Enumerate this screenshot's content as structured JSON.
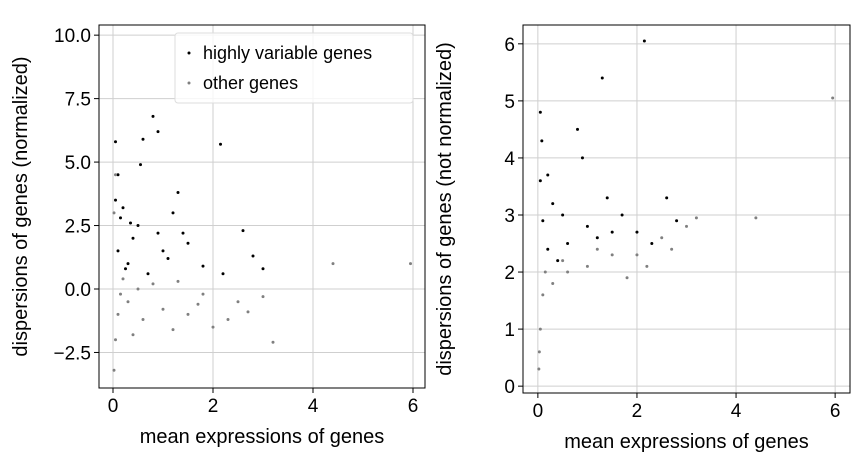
{
  "chart_data": [
    {
      "type": "scatter",
      "xlabel": "mean expressions of genes",
      "ylabel": "dispersions of genes (normalized)",
      "xlim": [
        -0.28,
        6.24
      ],
      "ylim": [
        -3.9,
        10.4
      ],
      "xticks": [
        0,
        2,
        4,
        6
      ],
      "yticks": [
        {
          "value": -2.5,
          "label": "−2.5"
        },
        {
          "value": 0,
          "label": "0.0"
        },
        2.5,
        {
          "value": 5,
          "label": "5.0"
        },
        7.5,
        {
          "value": 10,
          "label": "10.0"
        }
      ],
      "grid": true,
      "legend": "upper right",
      "series": [
        {
          "name": "highly variable genes",
          "color": "#000000",
          "x": [
            0.05,
            0.1,
            0.2,
            0.5,
            0.6,
            0.8,
            0.9,
            1.2,
            1.4,
            2.15,
            2.6,
            1.0,
            0.3,
            0.7,
            1.8,
            2.2,
            3.0,
            1.5,
            0.15,
            0.4,
            0.9,
            1.1,
            2.8,
            1.3,
            0.55,
            0.1,
            0.25,
            0.35,
            0.05
          ],
          "y": [
            5.8,
            4.5,
            3.2,
            2.5,
            5.9,
            6.8,
            6.2,
            3.0,
            2.2,
            5.7,
            2.3,
            1.5,
            1.0,
            0.6,
            0.9,
            0.6,
            0.8,
            1.8,
            2.8,
            2.0,
            2.2,
            1.2,
            1.3,
            3.8,
            4.9,
            1.5,
            0.8,
            2.6,
            3.5
          ]
        },
        {
          "name": "other genes",
          "color": "#808080",
          "x": [
            0.02,
            0.05,
            0.1,
            0.3,
            0.6,
            1.0,
            1.5,
            2.0,
            2.5,
            3.0,
            3.2,
            4.4,
            5.95,
            0.2,
            0.8,
            1.3,
            1.8,
            2.3,
            2.7,
            0.05,
            0.02,
            0.4,
            1.2,
            0.15,
            0.5,
            1.7
          ],
          "y": [
            -3.2,
            -2.0,
            -1.0,
            -0.5,
            -1.2,
            -0.8,
            -1.0,
            -1.5,
            -0.5,
            -0.3,
            -2.1,
            1.0,
            1.0,
            0.4,
            0.2,
            0.3,
            -0.2,
            -1.2,
            -0.9,
            4.5,
            3.0,
            -1.8,
            -1.6,
            -0.2,
            0.0,
            -0.6
          ]
        }
      ]
    },
    {
      "type": "scatter",
      "xlabel": "mean expressions of genes",
      "ylabel": "dispersions of genes (not normalized)",
      "xlim": [
        -0.3,
        6.3
      ],
      "ylim": [
        -0.12,
        6.33
      ],
      "xticks": [
        0,
        2,
        4,
        6
      ],
      "yticks": [
        0,
        1,
        2,
        3,
        4,
        5,
        6
      ],
      "grid": true,
      "series": [
        {
          "color": "#000000",
          "x": [
            0.05,
            0.08,
            0.2,
            0.3,
            0.5,
            0.8,
            0.9,
            1.3,
            2.15,
            1.4,
            2.6,
            1.0,
            1.5,
            2.0,
            2.8,
            0.2,
            0.6,
            1.2,
            1.7,
            0.4,
            2.3,
            0.1,
            0.05
          ],
          "y": [
            4.8,
            4.3,
            3.7,
            3.2,
            3.0,
            4.5,
            4.0,
            5.4,
            6.05,
            3.3,
            3.3,
            2.8,
            2.7,
            2.7,
            2.9,
            2.4,
            2.5,
            2.6,
            3.0,
            2.2,
            2.5,
            2.9,
            3.6
          ]
        },
        {
          "color": "#808080",
          "x": [
            0.02,
            0.05,
            0.1,
            0.3,
            0.6,
            1.0,
            1.5,
            2.0,
            2.5,
            3.0,
            3.2,
            4.4,
            5.95,
            0.5,
            1.2,
            1.8,
            2.2,
            2.7,
            0.15,
            0.03
          ],
          "y": [
            0.3,
            1.0,
            1.6,
            1.8,
            2.0,
            2.1,
            2.3,
            2.3,
            2.6,
            2.8,
            2.95,
            2.95,
            5.05,
            2.2,
            2.4,
            1.9,
            2.1,
            2.4,
            2.0,
            0.6
          ]
        }
      ]
    }
  ]
}
